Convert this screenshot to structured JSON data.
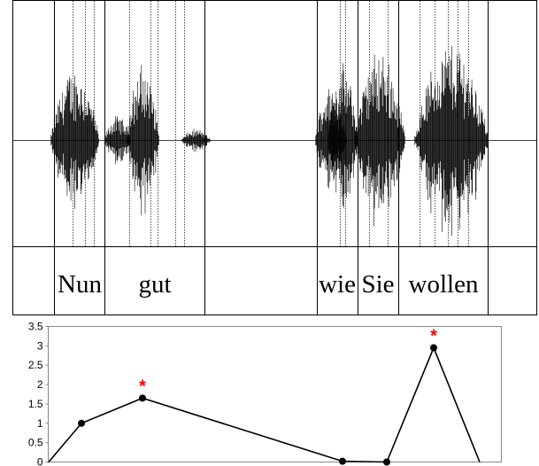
{
  "waveform_panel": {
    "words": [
      {
        "label": "Nun"
      },
      {
        "label": "gut"
      },
      {
        "label": ""
      },
      {
        "label": "wie"
      },
      {
        "label": "Sie"
      },
      {
        "label": "wollen"
      }
    ]
  },
  "chart_data": {
    "type": "line",
    "title": "",
    "xlabel": "",
    "ylabel": "",
    "y_ticks": [
      "0",
      "0.5",
      "1",
      "1.5",
      "2",
      "2.5",
      "3",
      "3.5"
    ],
    "ylim": [
      0,
      3.5
    ],
    "grid": false,
    "series": [
      {
        "points": [
          {
            "x": 0,
            "y": 0
          },
          {
            "x": 1,
            "y": 1.0
          },
          {
            "x": 2,
            "y": 1.65
          },
          {
            "x": 3,
            "y": 0.02
          },
          {
            "x": 4,
            "y": 0.0
          },
          {
            "x": 5,
            "y": 2.95
          },
          {
            "x": 6,
            "y": 0
          }
        ]
      }
    ],
    "marked_points": [
      2,
      5
    ],
    "marker_symbol": "*",
    "colors": {
      "line": "#000000",
      "marker": "#000000",
      "star": "#ff0000",
      "frame": "#888888"
    }
  }
}
